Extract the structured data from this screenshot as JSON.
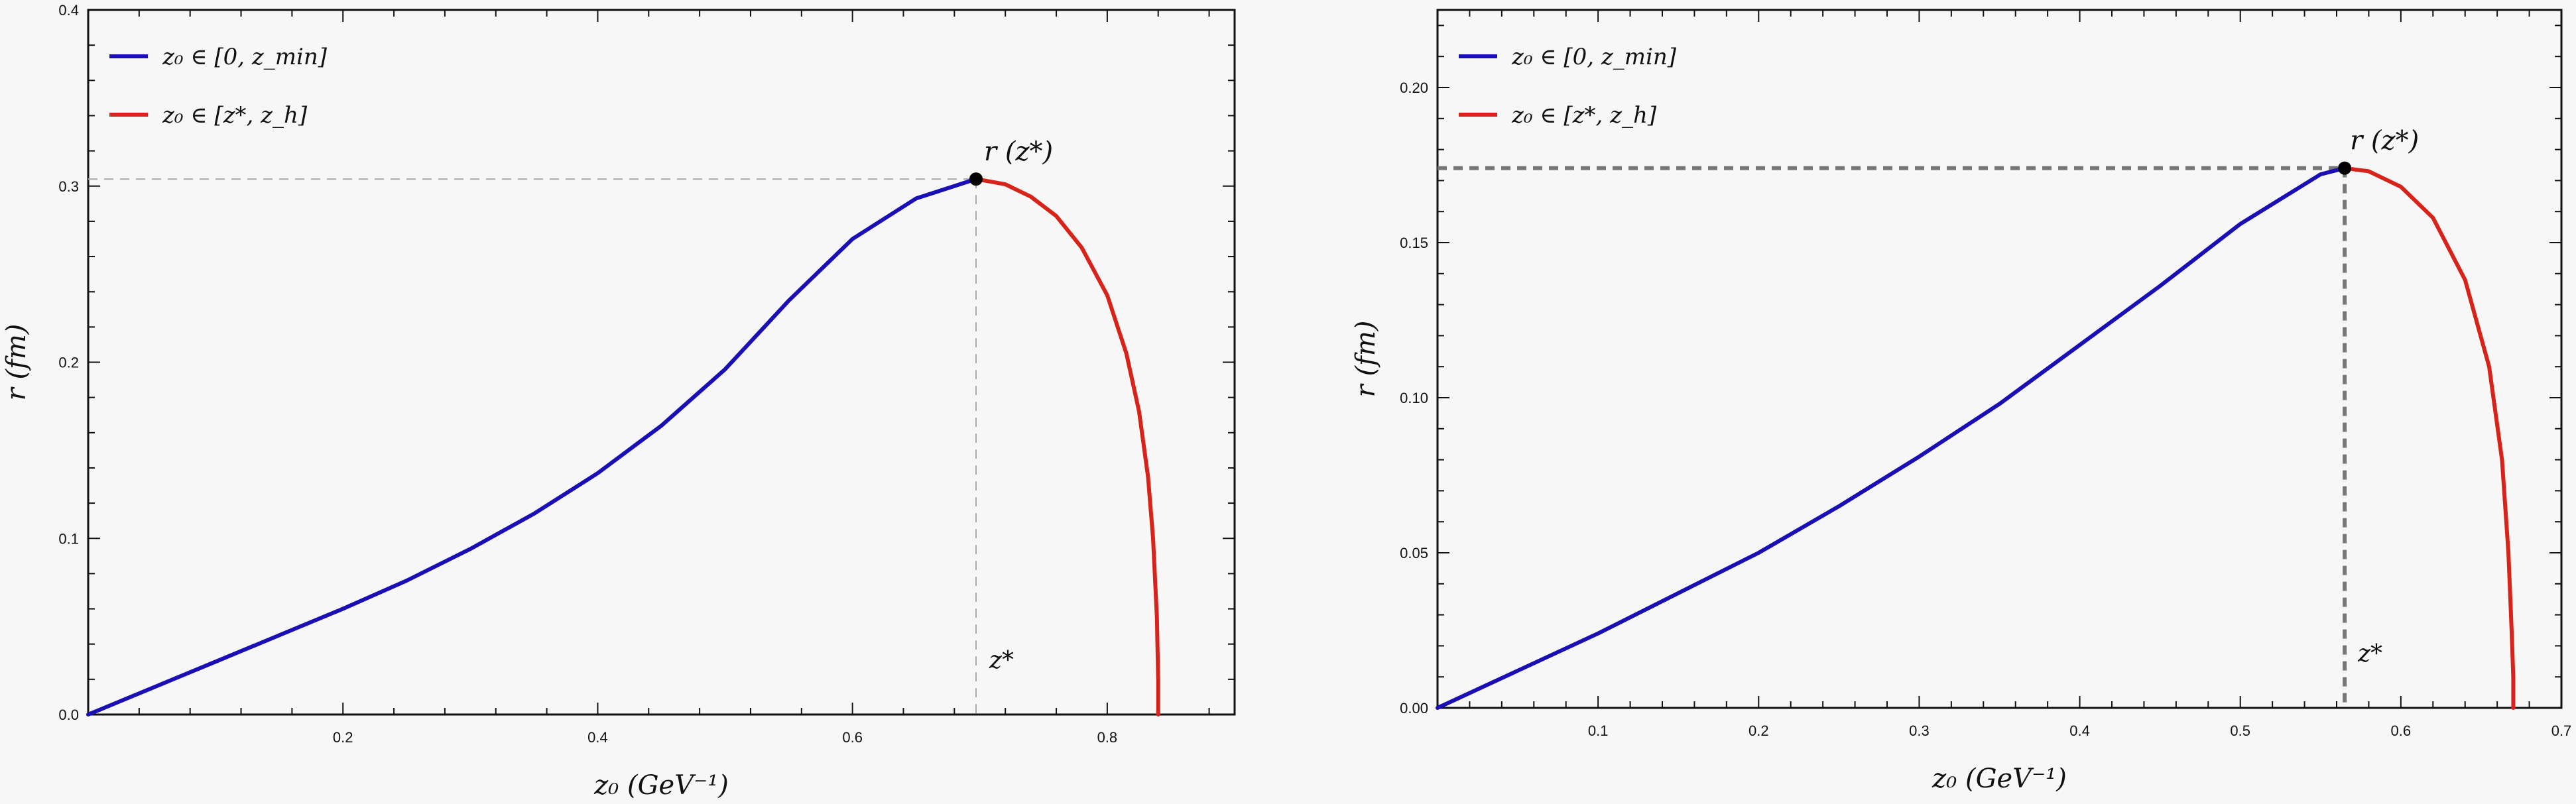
{
  "chart_data": [
    {
      "type": "line",
      "xlabel": "z₀ (GeV⁻¹)",
      "ylabel": "r (fm)",
      "xlim": [
        0,
        0.9
      ],
      "ylim": [
        0,
        0.4
      ],
      "x_ticks": [
        0.2,
        0.4,
        0.6,
        0.8
      ],
      "x_tick_labels": [
        "0.2",
        "0.4",
        "0.6",
        "0.8"
      ],
      "y_ticks": [
        0,
        0.1,
        0.2,
        0.3,
        0.4
      ],
      "y_tick_labels": [
        "0.0",
        "0.1",
        "0.2",
        "0.3",
        "0.4"
      ],
      "legend_position": "top-left",
      "grid": false,
      "series": [
        {
          "name": "z₀ ∈ [0, z_min]",
          "color": "#1a0fb4",
          "x": [
            0,
            0.05,
            0.1,
            0.15,
            0.2,
            0.25,
            0.3,
            0.35,
            0.4,
            0.45,
            0.5,
            0.55,
            0.6,
            0.65,
            0.697
          ],
          "y": [
            0,
            0.015,
            0.03,
            0.045,
            0.06,
            0.076,
            0.094,
            0.114,
            0.137,
            0.164,
            0.196,
            0.235,
            0.27,
            0.293,
            0.304
          ]
        },
        {
          "name": "z₀ ∈ [z*, z_h]",
          "color": "#d8231a",
          "x": [
            0.697,
            0.72,
            0.74,
            0.76,
            0.78,
            0.8,
            0.815,
            0.825,
            0.832,
            0.836,
            0.839,
            0.84,
            0.84
          ],
          "y": [
            0.304,
            0.301,
            0.294,
            0.283,
            0.265,
            0.238,
            0.205,
            0.172,
            0.135,
            0.1,
            0.055,
            0.02,
            0
          ]
        }
      ],
      "marker": {
        "x": 0.697,
        "y": 0.304,
        "label": "r (z*)"
      },
      "vline_label": "z*"
    },
    {
      "type": "line",
      "xlabel": "z₀ (GeV⁻¹)",
      "ylabel": "r (fm)",
      "xlim": [
        0,
        0.7
      ],
      "ylim": [
        0,
        0.225
      ],
      "x_ticks": [
        0.1,
        0.2,
        0.3,
        0.4,
        0.5,
        0.6,
        0.7
      ],
      "x_tick_labels": [
        "0.1",
        "0.2",
        "0.3",
        "0.4",
        "0.5",
        "0.6",
        "0.7"
      ],
      "y_ticks": [
        0,
        0.05,
        0.1,
        0.15,
        0.2
      ],
      "y_tick_labels": [
        "0.00",
        "0.05",
        "0.10",
        "0.15",
        "0.20"
      ],
      "legend_position": "top-left",
      "grid": false,
      "series": [
        {
          "name": "z₀ ∈ [0, z_min]",
          "color": "#1a0fb4",
          "x": [
            0,
            0.05,
            0.1,
            0.15,
            0.2,
            0.25,
            0.3,
            0.35,
            0.4,
            0.45,
            0.5,
            0.55,
            0.565
          ],
          "y": [
            0,
            0.012,
            0.024,
            0.037,
            0.05,
            0.065,
            0.081,
            0.098,
            0.117,
            0.136,
            0.156,
            0.172,
            0.174
          ]
        },
        {
          "name": "z₀ ∈ [z*, z_h]",
          "color": "#d8231a",
          "x": [
            0.565,
            0.58,
            0.6,
            0.62,
            0.64,
            0.655,
            0.663,
            0.667,
            0.669,
            0.67,
            0.67
          ],
          "y": [
            0.174,
            0.173,
            0.168,
            0.158,
            0.138,
            0.11,
            0.08,
            0.05,
            0.025,
            0.01,
            0
          ]
        }
      ],
      "marker": {
        "x": 0.565,
        "y": 0.174,
        "label": "r (z*)"
      },
      "vline_label": "z*"
    }
  ]
}
